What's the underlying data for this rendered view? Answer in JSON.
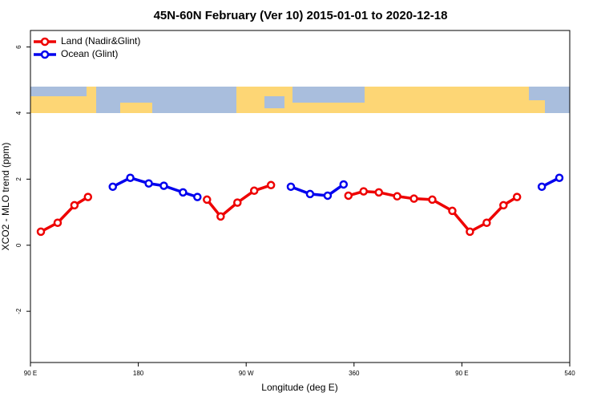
{
  "chart_data": {
    "type": "line",
    "title": "45N-60N February (Ver 10)   2015-01-01 to 2020-12-18",
    "x_label": "Longitude (deg E)",
    "y_label": "XCO2 - MLO trend (ppm)",
    "xlim": [
      90,
      540
    ],
    "ylim": [
      -3.55,
      6.5
    ],
    "xticks": [
      {
        "value": 90,
        "label": "90 E"
      },
      180,
      {
        "value": 270,
        "label": "90 W"
      },
      360,
      {
        "value": 450,
        "label": "90 E"
      },
      540
    ],
    "yticks": [
      -2,
      0,
      2,
      4,
      6
    ],
    "legend": "top-left",
    "series": [
      {
        "name": "Land (Nadir&Glint)",
        "color": "#ee0000",
        "x": [
          98.7,
          112.7,
          126.7,
          138,
          null,
          237.3,
          248.7,
          262.7,
          276.7,
          290.7,
          null,
          355.3,
          368,
          380.7,
          396,
          410,
          425.3,
          442,
          456.7,
          470.7,
          484.7,
          496
        ],
        "values": [
          0.41,
          0.68,
          1.21,
          1.46,
          null,
          1.38,
          0.87,
          1.29,
          1.65,
          1.82,
          null,
          1.5,
          1.63,
          1.6,
          1.48,
          1.41,
          1.38,
          1.04,
          0.41,
          0.68,
          1.21,
          1.46
        ]
      },
      {
        "name": "Ocean (Glint)",
        "color": "#0000ee",
        "x": [
          158.7,
          173.3,
          188.7,
          201.3,
          217.3,
          229.3,
          null,
          307.3,
          323.3,
          338,
          351.3,
          null,
          516.7,
          531.3
        ],
        "values": [
          1.77,
          2.04,
          1.87,
          1.8,
          1.6,
          1.46,
          null,
          1.77,
          1.55,
          1.5,
          1.84,
          null,
          1.77,
          2.04
        ]
      }
    ]
  }
}
